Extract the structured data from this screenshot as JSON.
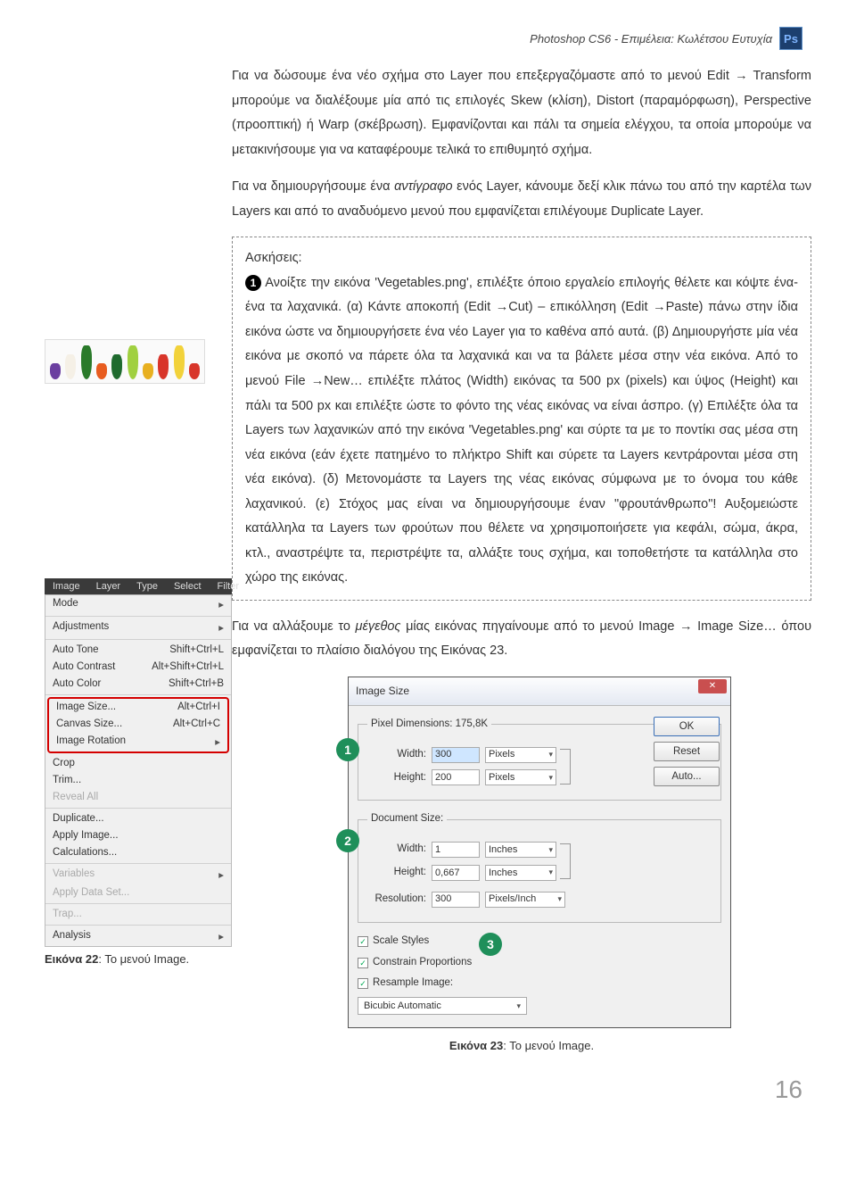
{
  "header": {
    "text": "Photoshop CS6 - Επιμέλεια: Κωλέτσου Ευτυχία",
    "ps_label": "Ps"
  },
  "para1": "Για να δώσουμε ένα νέο σχήμα στο Layer που επεξεργαζόμαστε από το μενού Edit → Transform μπορούμε να διαλέξουμε μία από τις επιλογές Skew (κλίση), Distort (παραμόρφωση), Perspective (προοπτική) ή Warp (σκέβρωση). Εμφανίζονται και πάλι τα σημεία ελέγχου, τα οποία μπορούμε να μετακινήσουμε για να καταφέρουμε τελικά το επιθυμητό σχήμα.",
  "para2_pre": "Για να δημιουργήσουμε ένα ",
  "para2_em": "αντίγραφο",
  "para2_post": " ενός Layer, κάνουμε δεξί κλικ πάνω του από την καρτέλα των Layers και από το αναδυόμενο μενού που εμφανίζεται επιλέγουμε Duplicate Layer.",
  "exercise": {
    "title": "Ασκήσεις:",
    "num": "1",
    "text": " Ανοίξτε την εικόνα 'Vegetables.png', επιλέξτε όποιο εργαλείο επιλογής θέλετε και κόψτε ένα-ένα τα λαχανικά. (α) Κάντε αποκοπή (Edit →Cut) – επικόλληση (Edit →Paste) πάνω στην ίδια εικόνα ώστε να δημιουργήσετε ένα νέο Layer για το καθένα από αυτά. (β) Δημιουργήστε μία νέα εικόνα με σκοπό να πάρετε όλα τα λαχανικά και να τα βάλετε μέσα στην νέα εικόνα. Από το μενού File →New… επιλέξτε πλάτος (Width) εικόνας τα 500 px (pixels) και ύψος (Height) και πάλι τα 500 px και επιλέξτε ώστε το φόντο της νέας εικόνας να είναι άσπρο. (γ) Επιλέξτε όλα τα Layers των λαχανικών από την εικόνα 'Vegetables.png' και σύρτε τα με το ποντίκι σας μέσα στη νέα εικόνα (εάν έχετε πατημένο το πλήκτρο Shift και σύρετε τα Layers κεντράρονται μέσα στη νέα εικόνα). (δ) Μετονομάστε τα Layers της νέας εικόνας σύμφωνα με το όνομα του κάθε λαχανικού. (ε) Στόχος μας είναι να δημιουργήσουμε έναν \"φρουτάνθρωπο\"! Αυξομειώστε κατάλληλα τα Layers των φρούτων που θέλετε να χρησιμοποιήσετε για κεφάλι, σώμα, άκρα, κτλ., αναστρέψτε τα, περιστρέψτε τα, αλλάξτε τους σχήμα, και τοποθετήστε τα κατάλληλα στο χώρο της εικόνας."
  },
  "para3_pre": "Για να αλλάξουμε το ",
  "para3_em": "μέγεθος",
  "para3_post": " μίας εικόνας πηγαίνουμε από το μενού Image → Image Size… όπου εμφανίζεται το πλαίσιο διαλόγου της Εικόνας 23.",
  "menu": {
    "bar": [
      "Image",
      "Layer",
      "Type",
      "Select",
      "Filter"
    ],
    "items": [
      {
        "l": "Mode",
        "r": "",
        "arrow": true
      },
      {
        "sep": true
      },
      {
        "l": "Adjustments",
        "r": "",
        "arrow": true
      },
      {
        "sep": true
      },
      {
        "l": "Auto Tone",
        "r": "Shift+Ctrl+L"
      },
      {
        "l": "Auto Contrast",
        "r": "Alt+Shift+Ctrl+L"
      },
      {
        "l": "Auto Color",
        "r": "Shift+Ctrl+B"
      },
      {
        "sep": true
      },
      {
        "l": "Image Size...",
        "r": "Alt+Ctrl+I",
        "hl": true
      },
      {
        "l": "Canvas Size...",
        "r": "Alt+Ctrl+C",
        "hl": true
      },
      {
        "l": "Image Rotation",
        "r": "",
        "arrow": true,
        "hl": true
      },
      {
        "l": "Crop",
        "r": ""
      },
      {
        "l": "Trim...",
        "r": ""
      },
      {
        "l": "Reveal All",
        "r": "",
        "disabled": true
      },
      {
        "sep": true
      },
      {
        "l": "Duplicate...",
        "r": ""
      },
      {
        "l": "Apply Image...",
        "r": ""
      },
      {
        "l": "Calculations...",
        "r": ""
      },
      {
        "sep": true
      },
      {
        "l": "Variables",
        "r": "",
        "arrow": true,
        "disabled": true
      },
      {
        "l": "Apply Data Set...",
        "r": "",
        "disabled": true
      },
      {
        "sep": true
      },
      {
        "l": "Trap...",
        "r": "",
        "disabled": true
      },
      {
        "sep": true
      },
      {
        "l": "Analysis",
        "r": "",
        "arrow": true
      }
    ]
  },
  "caption22_b": "Εικόνα 22",
  "caption22_r": ": Το μενού Image.",
  "panel": {
    "title": "Image Size",
    "pixdim_label": "Pixel Dimensions:",
    "pixdim_val": "175,8K",
    "width_l": "Width:",
    "height_l": "Height:",
    "res_l": "Resolution:",
    "w1": "300",
    "h1": "200",
    "u_pixels": "Pixels",
    "docsize": "Document Size:",
    "w2": "1",
    "h2": "0,667",
    "u_inches": "Inches",
    "res": "300",
    "u_ppi": "Pixels/Inch",
    "cb1": "Scale Styles",
    "cb2": "Constrain Proportions",
    "cb3": "Resample Image:",
    "method": "Bicubic Automatic",
    "ok": "OK",
    "reset": "Reset",
    "auto": "Auto..."
  },
  "badges": {
    "b1": "1",
    "b2": "2",
    "b3": "3"
  },
  "caption23_b": "Εικόνα 23",
  "caption23_r": ": Το μενού Image.",
  "page": "16",
  "veg_colors": [
    "#6b3fa0",
    "#f5f0e6",
    "#2a7a2a",
    "#e85c1f",
    "#1f6b2f",
    "#a0d040",
    "#e8b020",
    "#d8352a",
    "#f2d23a",
    "#d8352a"
  ]
}
